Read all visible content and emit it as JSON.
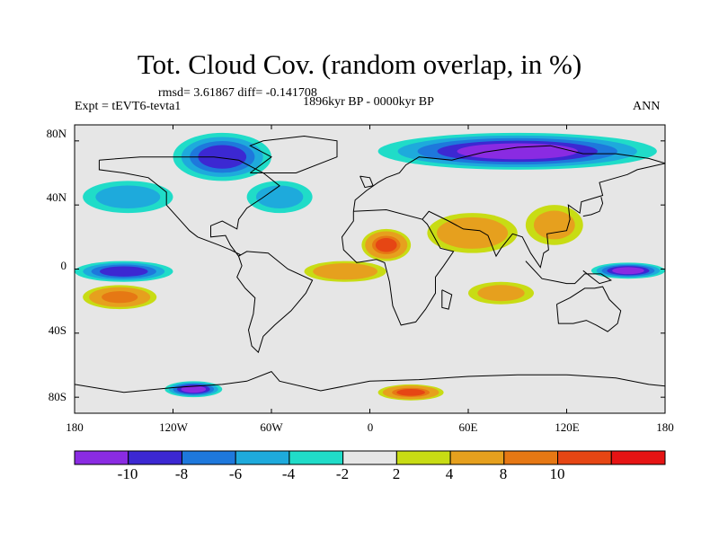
{
  "title": "Tot. Cloud Cov. (random overlap, in %)",
  "stats": "rmsd= 3.61867 diff= -0.141708",
  "period": "1896kyr BP - 0000kyr BP",
  "experiment": "Expt = tEVT6-tevta1",
  "season": "ANN",
  "y_labels": [
    "80N",
    "40N",
    "0",
    "40S",
    "80S"
  ],
  "x_labels": [
    "180",
    "120W",
    "60W",
    "0",
    "60E",
    "120E",
    "180"
  ],
  "colorbar": {
    "colors": [
      "#8a2be2",
      "#3c28d2",
      "#1e78dc",
      "#1eaadc",
      "#20dcc8",
      "#e6e6e6",
      "#c8dc14",
      "#e6a01e",
      "#e67814",
      "#e64614",
      "#e61414"
    ],
    "labels": [
      "-10",
      "-8",
      "-6",
      "-4",
      "-2",
      "2",
      "4",
      "8",
      "10"
    ]
  },
  "chart_data": {
    "type": "heatmap",
    "projection": "cylindrical equidistant",
    "variable": "Tot. Cloud Cov. (random overlap, in %)",
    "diff_value": -0.141708,
    "rmsd_value": 3.61867,
    "lon_range": [
      -180,
      180
    ],
    "lat_range": [
      -90,
      90
    ],
    "contour_levels": [
      -10,
      -8,
      -6,
      -4,
      -2,
      2,
      4,
      8,
      10
    ],
    "regions": [
      {
        "name": "north-america-arctic",
        "lon": [
          -120,
          -60
        ],
        "lat": [
          55,
          85
        ],
        "value": -8
      },
      {
        "name": "siberia-arctic",
        "lon": [
          5,
          175
        ],
        "lat": [
          62,
          85
        ],
        "value": -10
      },
      {
        "name": "north-pacific",
        "lon": [
          -175,
          -120
        ],
        "lat": [
          35,
          55
        ],
        "value": -4
      },
      {
        "name": "north-atlantic",
        "lon": [
          -75,
          -35
        ],
        "lat": [
          35,
          55
        ],
        "value": -4
      },
      {
        "name": "sahara",
        "lon": [
          -5,
          25
        ],
        "lat": [
          5,
          25
        ],
        "value": 10
      },
      {
        "name": "middle-east-india",
        "lon": [
          35,
          90
        ],
        "lat": [
          10,
          35
        ],
        "value": 6
      },
      {
        "name": "china",
        "lon": [
          95,
          130
        ],
        "lat": [
          15,
          40
        ],
        "value": 4
      },
      {
        "name": "tropical-atlantic",
        "lon": [
          -40,
          10
        ],
        "lat": [
          -8,
          5
        ],
        "value": 6
      },
      {
        "name": "tropical-east-pacific",
        "lon": [
          -180,
          -120
        ],
        "lat": [
          -8,
          5
        ],
        "value": -8
      },
      {
        "name": "tropical-west-pacific",
        "lon": [
          135,
          180
        ],
        "lat": [
          -6,
          4
        ],
        "value": -10
      },
      {
        "name": "south-pacific",
        "lon": [
          -175,
          -130
        ],
        "lat": [
          -25,
          -10
        ],
        "value": 8
      },
      {
        "name": "indian-ocean",
        "lon": [
          60,
          100
        ],
        "lat": [
          -22,
          -8
        ],
        "value": 4
      },
      {
        "name": "southern-ocean-west",
        "lon": [
          -125,
          -90
        ],
        "lat": [
          -80,
          -70
        ],
        "value": -10
      },
      {
        "name": "southern-ocean-east",
        "lon": [
          5,
          45
        ],
        "lat": [
          -82,
          -72
        ],
        "value": 10
      }
    ]
  }
}
